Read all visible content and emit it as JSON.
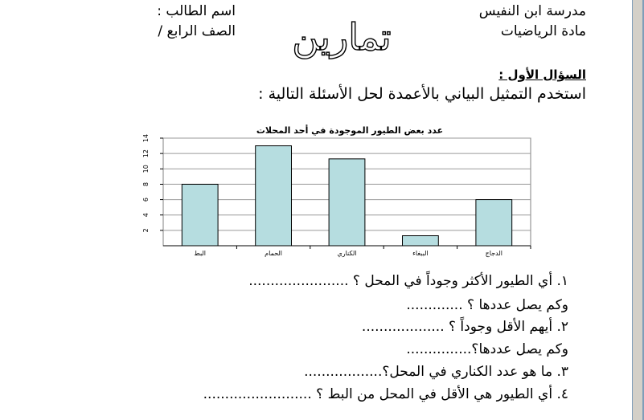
{
  "header": {
    "school": "مدرسة ابن النفيس",
    "subject": "مادة الرياضيات",
    "student_name": "اسم الطالب :",
    "grade": "الصف الرابع /",
    "title": "تمارين"
  },
  "question": {
    "heading": "السؤال الأول :",
    "instruction": "استخدم التمثيل البياني بالأعمدة لحل الأسئلة التالية :"
  },
  "chart_data": {
    "type": "bar",
    "title": "عدد بعض الطيور الموجودة في أحد المحلات",
    "categories": [
      "البط",
      "الحمام",
      "الكناري",
      "الببغاء",
      "الدجاج"
    ],
    "values": [
      8,
      13,
      11.3,
      1.3,
      6
    ],
    "ylim": [
      0,
      14
    ],
    "yticks": [
      2,
      4,
      6,
      8,
      10,
      12,
      14
    ],
    "grid": true,
    "bar_color": "#b6dde0",
    "xlabel": "",
    "ylabel": ""
  },
  "lines": [
    "١. أي الطيور الأكثر وجوداً في المحل ؟ .......................",
    "وكم يصل عددها ؟ .............",
    "٢. أيهم الأقل وجوداً ؟ ...................",
    "وكم يصل عددها؟...............",
    "٣. ما هو عدد الكناري في المحل؟..................",
    "٤. أي الطيور هي الأقل في المحل من البط ؟ ........................."
  ]
}
